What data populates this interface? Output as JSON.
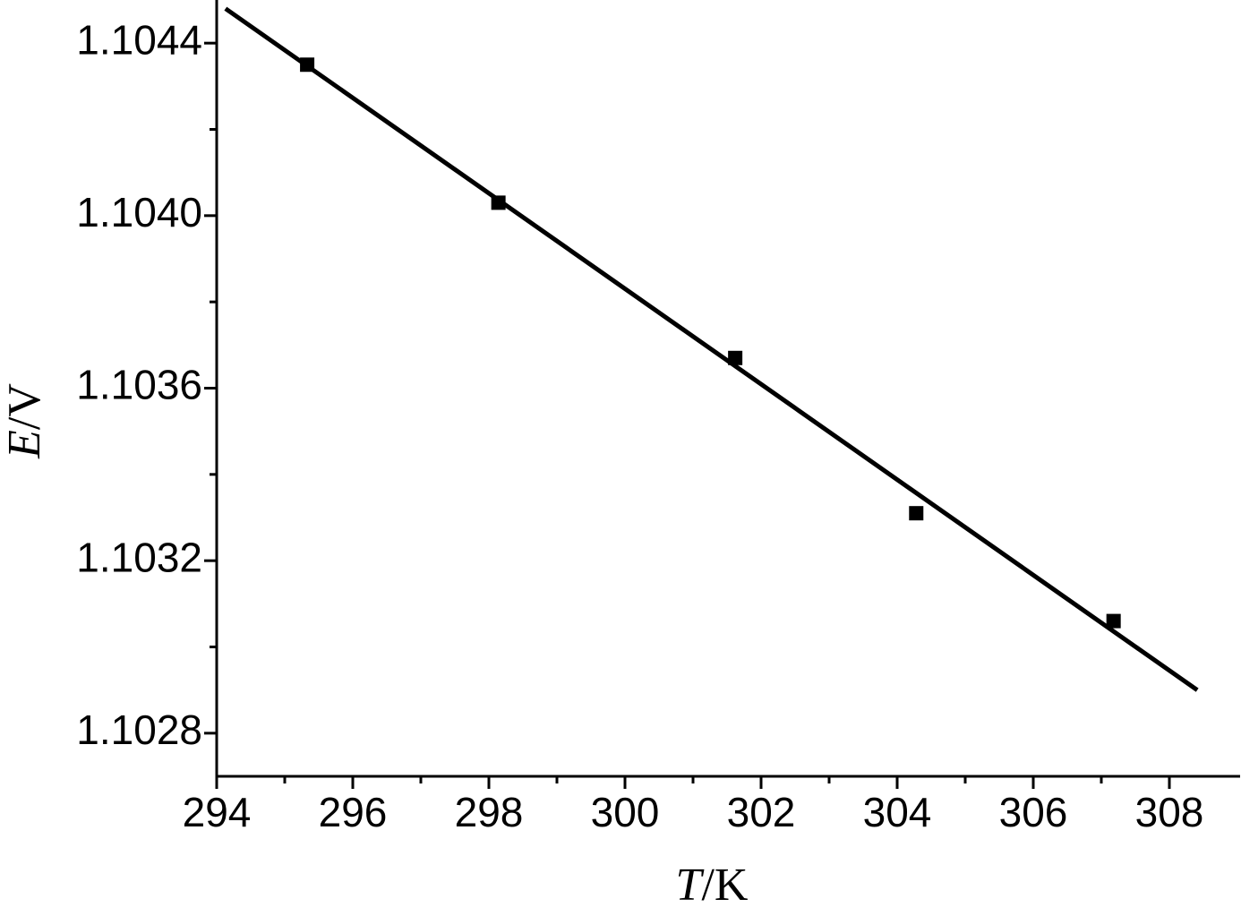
{
  "chart_data": {
    "type": "scatter",
    "xlabel": {
      "symbol": "T",
      "unit": "/K"
    },
    "ylabel": {
      "symbol": "E",
      "unit": "/V"
    },
    "x": [
      295.33,
      298.14,
      301.62,
      304.28,
      307.18
    ],
    "values": [
      1.10435,
      1.10403,
      1.10367,
      1.10331,
      1.10306
    ],
    "color": "#000000",
    "fit": {
      "x": [
        294.13,
        308.41
      ],
      "values": [
        1.10448,
        1.1029
      ],
      "color": "#000000"
    },
    "xlim": [
      294,
      309
    ],
    "ylim": [
      1.1027,
      1.1045
    ],
    "xticks": [
      294,
      296,
      298,
      300,
      302,
      304,
      306,
      308
    ],
    "xticks_minor": [
      295,
      297,
      299,
      301,
      303,
      305,
      307
    ],
    "yticks": [
      {
        "value": 1.1028,
        "label": "1.1028"
      },
      1.1032,
      1.1036,
      {
        "value": 1.104,
        "label": "1.1040"
      },
      1.1044
    ],
    "yticks_minor": [
      1.103,
      1.1034,
      1.1038,
      1.1042
    ]
  }
}
